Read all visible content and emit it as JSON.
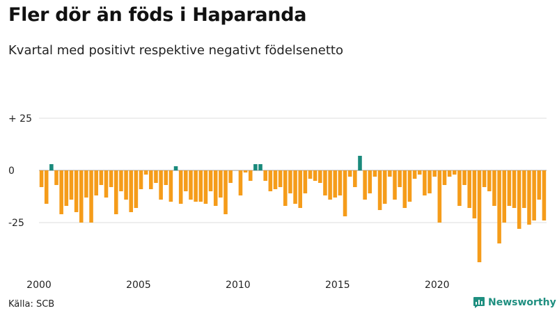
{
  "title": "Fler dör än föds i Haparanda",
  "subtitle": "Kvartal med positivt respektive negativt födelsenetto",
  "source": "Källa: SCB",
  "brand": "Newsworthy",
  "colors": {
    "positive": "#1a8a7c",
    "negative": "#f59c1a",
    "grid": "#dddddd",
    "zero_line": "#999999"
  },
  "chart_data": {
    "type": "bar",
    "title": "Fler dör än föds i Haparanda",
    "subtitle": "Kvartal med positivt respektive negativt födelsenetto",
    "xlabel": "",
    "ylabel": "",
    "ylim": [
      -45,
      30
    ],
    "y_ticks": [
      25,
      0,
      -25
    ],
    "y_tick_labels": [
      "+ 25",
      "0",
      "-25"
    ],
    "x_ticks": [
      2000,
      2005,
      2010,
      2015,
      2020
    ],
    "x_tick_labels": [
      "2000",
      "2005",
      "2010",
      "2015",
      "2020"
    ],
    "start_year": 2000,
    "quarters_per_year": 4,
    "grid": true,
    "legend": "none",
    "values": [
      -8,
      -16,
      3,
      -7,
      -21,
      -17,
      -14,
      -20,
      -25,
      -13,
      -25,
      -12,
      -7,
      -13,
      -8,
      -21,
      -10,
      -14,
      -20,
      -18,
      -9,
      -2,
      -9,
      -6,
      -14,
      -7,
      -15,
      2,
      -16,
      -10,
      -14,
      -15,
      -15,
      -16,
      -10,
      -17,
      -13,
      -21,
      -6,
      0,
      -12,
      -1,
      -5,
      3,
      3,
      -5,
      -10,
      -9,
      -8,
      -17,
      -11,
      -16,
      -18,
      -11,
      -4,
      -5,
      -6,
      -12,
      -14,
      -13,
      -12,
      -22,
      -3,
      -8,
      7,
      -14,
      -11,
      -3,
      -19,
      -16,
      -3,
      -14,
      -8,
      -18,
      -15,
      -4,
      -2,
      -12,
      -11,
      -3,
      -25,
      -7,
      -3,
      -2,
      -17,
      -7,
      -18,
      -23,
      -44,
      -8,
      -10,
      -17,
      -35,
      -25,
      -17,
      -18,
      -28,
      -18,
      -26,
      -24,
      -14,
      -24
    ]
  }
}
